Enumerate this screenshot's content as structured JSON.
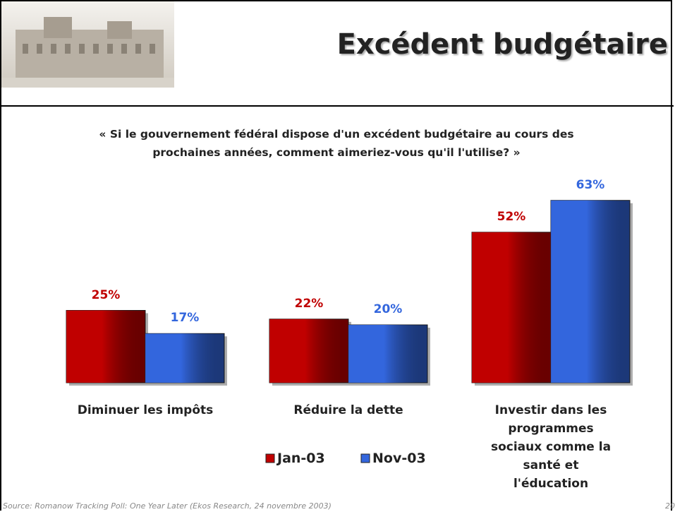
{
  "chart_data": {
    "type": "bar",
    "title": "Excédent budgétaire",
    "subtitle": "« Si le gouvernement fédéral dispose d'un excédent budgétaire au cours des prochaines années, comment aimeriez-vous qu'il l'utilise? »",
    "categories": [
      "Diminuer les impôts",
      "Réduire la dette",
      "Investir dans les programmes sociaux comme la santé et l'éducation"
    ],
    "series": [
      {
        "name": "Jan-03",
        "color": "#c00000",
        "values": [
          25,
          22,
          52
        ],
        "value_labels": [
          "25%",
          "22%",
          "52%"
        ]
      },
      {
        "name": "Nov-03",
        "color": "#3366dd",
        "values": [
          17,
          20,
          63
        ],
        "value_labels": [
          "17%",
          "20%",
          "63%"
        ]
      }
    ],
    "source": "Source: Romanow Tracking Poll: One Year Later (Ekos Research, 24 novembre 2003)",
    "page_number": "20"
  }
}
